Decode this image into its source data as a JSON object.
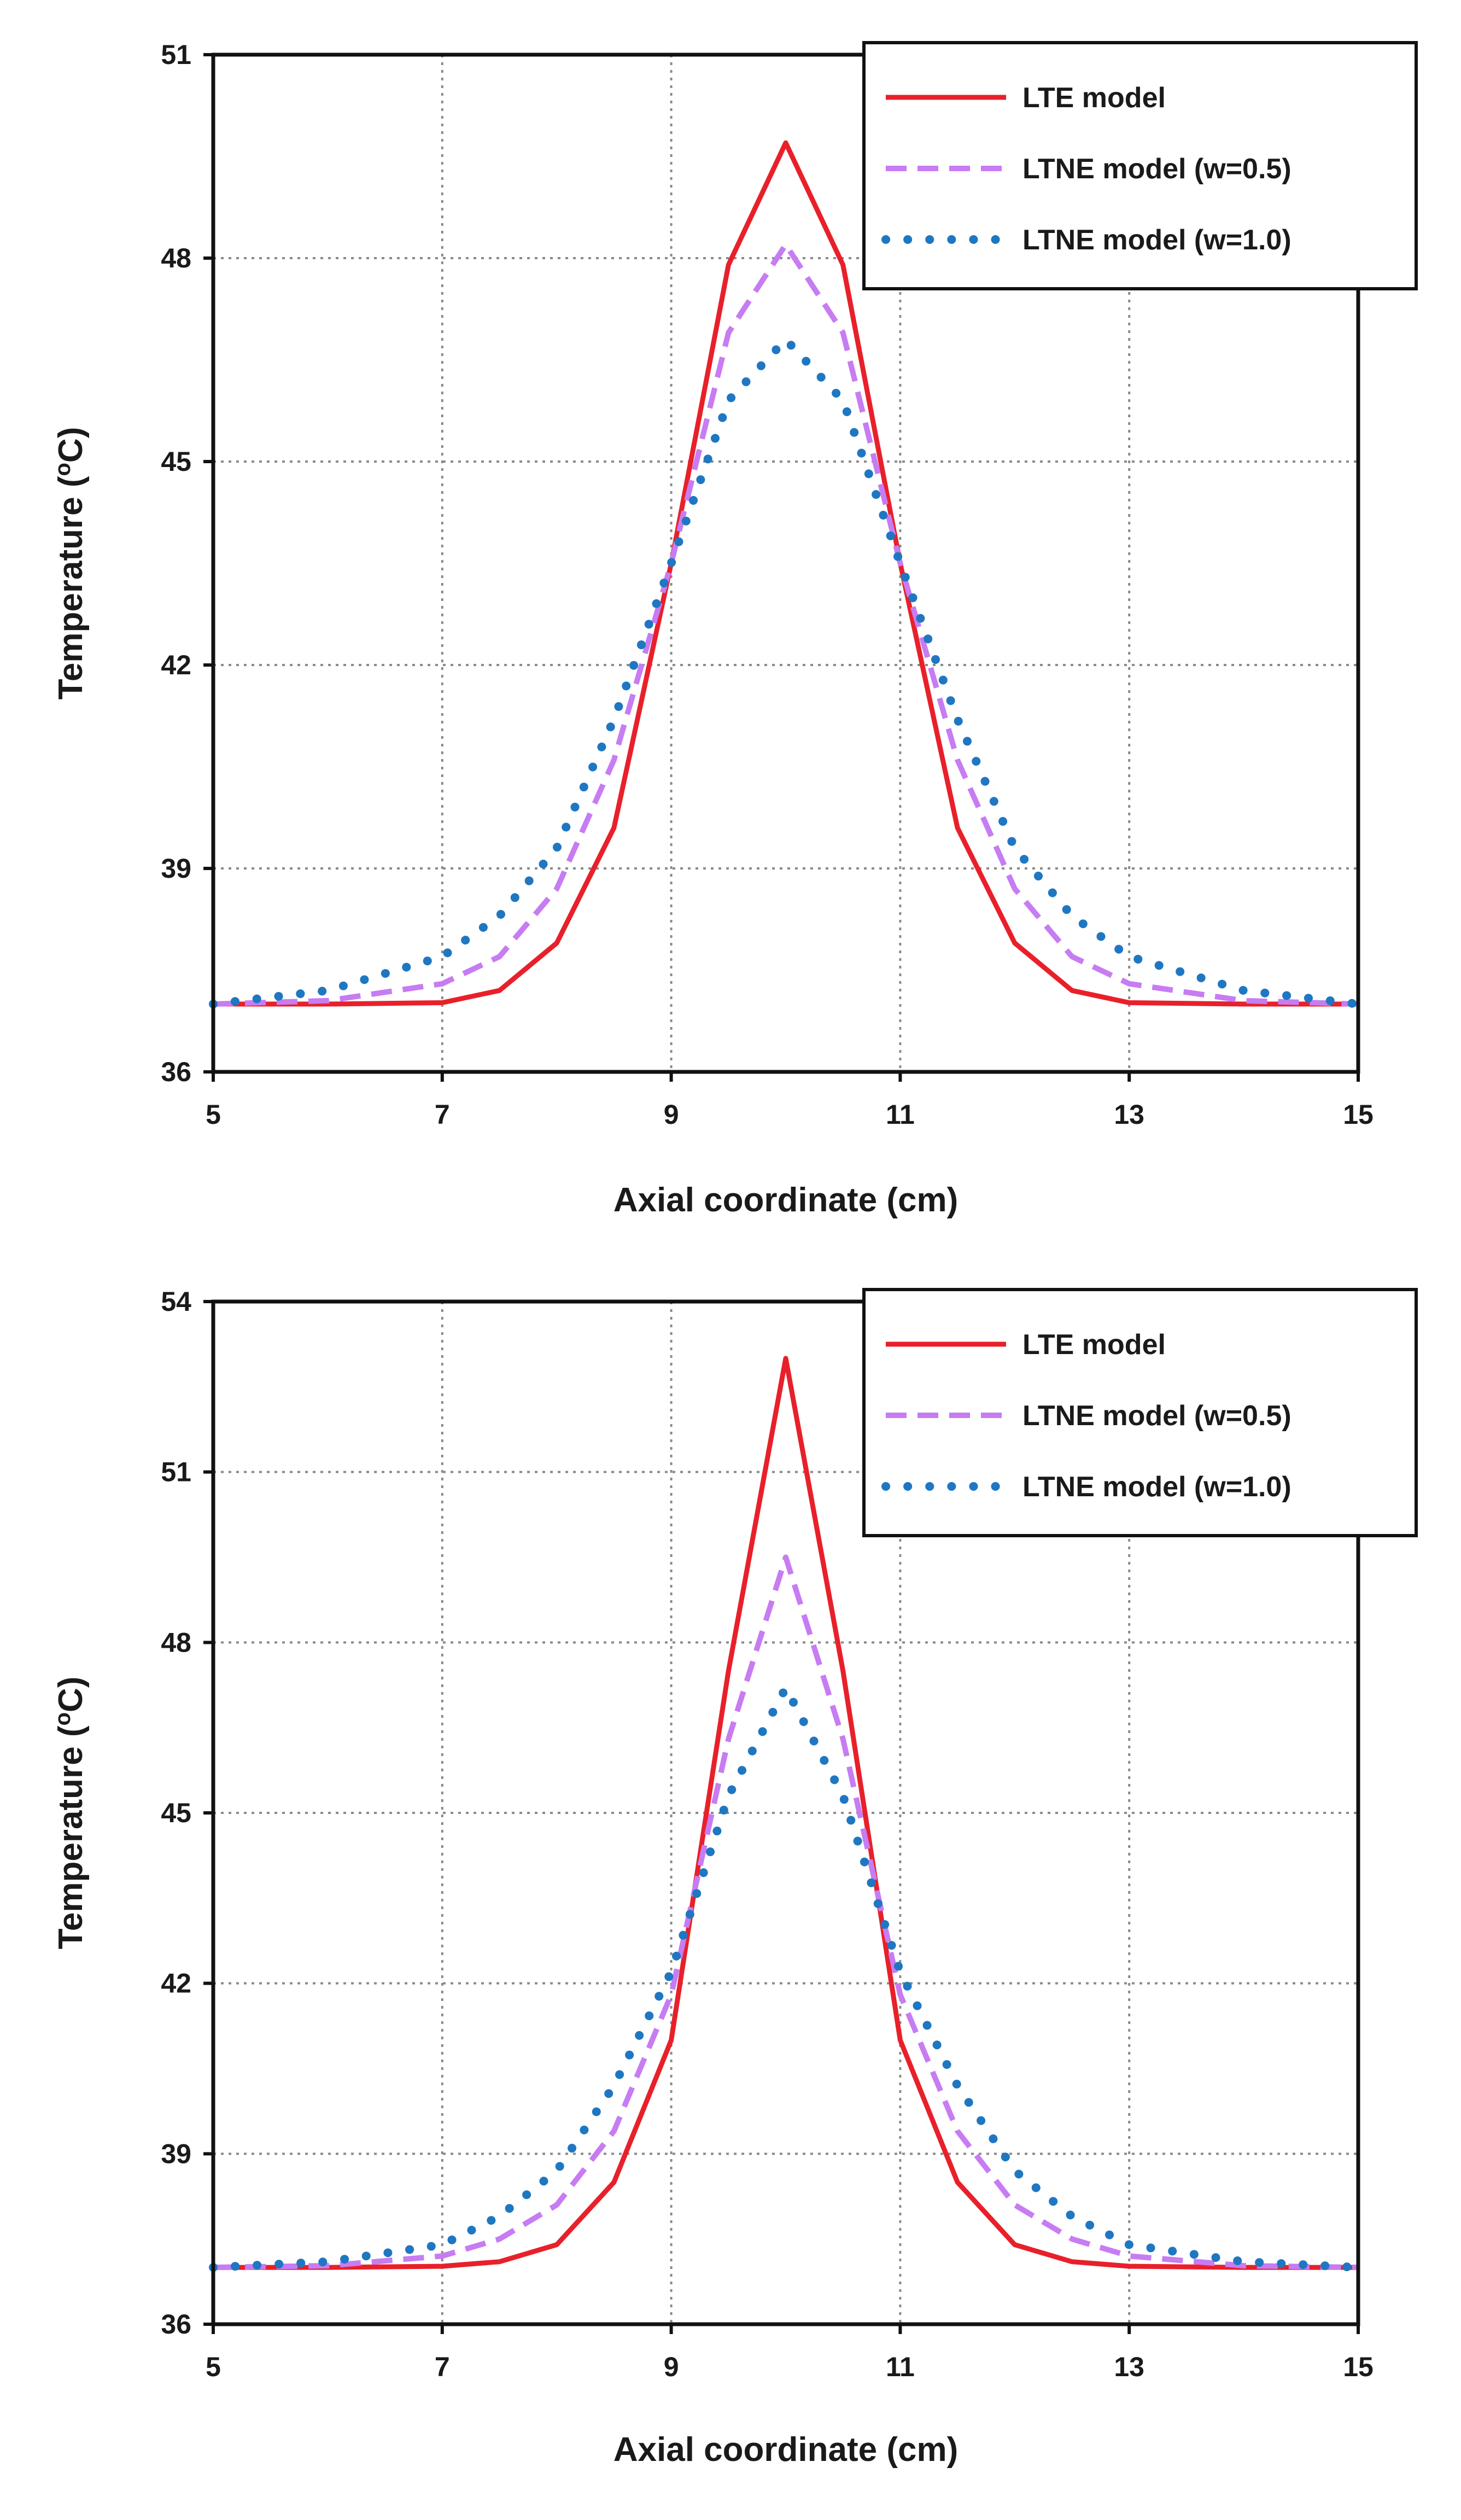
{
  "chart_data": [
    {
      "type": "line",
      "title": "",
      "xlabel": "Axial coordinate (cm)",
      "ylabel": "Temperature (",
      "ylabel_sup": "o",
      "ylabel_suffix": "C)",
      "xlim": [
        5,
        15
      ],
      "ylim": [
        36,
        51
      ],
      "xticks": [
        "5",
        "7",
        "9",
        "11",
        "13",
        "15"
      ],
      "yticks": [
        "36",
        "39",
        "42",
        "45",
        "48",
        "51"
      ],
      "grid": true,
      "legend_position": "top-right",
      "series": [
        {
          "name": "LTE model",
          "style": "solid",
          "color": "#e8202a",
          "x": [
            5.0,
            6.0,
            7.0,
            7.5,
            8.0,
            8.5,
            9.0,
            9.5,
            10.0,
            10.5,
            11.0,
            11.5,
            12.0,
            12.5,
            13.0,
            14.0,
            15.0
          ],
          "y": [
            37.0,
            37.0,
            37.02,
            37.2,
            37.9,
            39.6,
            43.5,
            47.9,
            49.7,
            47.9,
            43.5,
            39.6,
            37.9,
            37.2,
            37.02,
            37.0,
            37.0
          ]
        },
        {
          "name": "LTNE model (w=0.5)",
          "style": "dashed",
          "color": "#c77cf2",
          "x": [
            5.0,
            6.0,
            7.0,
            7.5,
            8.0,
            8.5,
            9.0,
            9.5,
            10.0,
            10.5,
            11.0,
            11.5,
            12.0,
            12.5,
            13.0,
            14.0,
            15.0
          ],
          "y": [
            37.0,
            37.05,
            37.3,
            37.7,
            38.7,
            40.6,
            43.5,
            46.9,
            48.2,
            46.9,
            43.5,
            40.6,
            38.7,
            37.7,
            37.3,
            37.05,
            37.0
          ]
        },
        {
          "name": "LTNE model (w=1.0)",
          "style": "dotted",
          "color": "#1f77c2",
          "x": [
            5.0,
            6.0,
            7.0,
            7.5,
            8.0,
            8.5,
            9.0,
            9.5,
            10.0,
            10.5,
            11.0,
            11.5,
            12.0,
            12.5,
            13.0,
            14.0,
            15.0
          ],
          "y": [
            37.0,
            37.2,
            37.7,
            38.3,
            39.3,
            41.2,
            43.5,
            45.9,
            46.8,
            45.9,
            43.5,
            41.2,
            39.3,
            38.3,
            37.7,
            37.2,
            37.0
          ]
        }
      ]
    },
    {
      "type": "line",
      "title": "",
      "xlabel": "Axial coordinate (cm)",
      "ylabel": "Temperature (",
      "ylabel_sup": "o",
      "ylabel_suffix": "C)",
      "xlim": [
        5,
        15
      ],
      "ylim": [
        36,
        54
      ],
      "xticks": [
        "5",
        "7",
        "9",
        "11",
        "13",
        "15"
      ],
      "yticks": [
        "36",
        "39",
        "42",
        "45",
        "48",
        "51",
        "54"
      ],
      "grid": true,
      "legend_position": "top-right",
      "series": [
        {
          "name": "LTE model",
          "style": "solid",
          "color": "#e8202a",
          "x": [
            5.0,
            6.0,
            7.0,
            7.5,
            8.0,
            8.5,
            9.0,
            9.5,
            10.0,
            10.5,
            11.0,
            11.5,
            12.0,
            12.5,
            13.0,
            14.0,
            15.0
          ],
          "y": [
            37.0,
            37.0,
            37.02,
            37.1,
            37.4,
            38.5,
            41.0,
            47.5,
            53.0,
            47.5,
            41.0,
            38.5,
            37.4,
            37.1,
            37.02,
            37.0,
            37.0
          ]
        },
        {
          "name": "LTNE model (w=0.5)",
          "style": "dashed",
          "color": "#c77cf2",
          "x": [
            5.0,
            6.0,
            7.0,
            7.5,
            8.0,
            8.5,
            9.0,
            9.5,
            10.0,
            10.5,
            11.0,
            11.5,
            12.0,
            12.5,
            13.0,
            14.0,
            15.0
          ],
          "y": [
            37.0,
            37.03,
            37.2,
            37.5,
            38.1,
            39.4,
            41.8,
            46.3,
            49.5,
            46.3,
            41.8,
            39.4,
            38.1,
            37.5,
            37.2,
            37.03,
            37.0
          ]
        },
        {
          "name": "LTNE model (w=1.0)",
          "style": "dotted",
          "color": "#1f77c2",
          "x": [
            5.0,
            6.0,
            7.0,
            7.5,
            8.0,
            8.5,
            9.0,
            9.5,
            10.0,
            10.5,
            11.0,
            11.5,
            12.0,
            12.5,
            13.0,
            14.0,
            15.0
          ],
          "y": [
            37.0,
            37.1,
            37.4,
            37.9,
            38.7,
            40.2,
            42.2,
            45.3,
            47.2,
            45.3,
            42.2,
            40.2,
            38.7,
            37.9,
            37.4,
            37.1,
            37.0
          ]
        }
      ]
    }
  ]
}
